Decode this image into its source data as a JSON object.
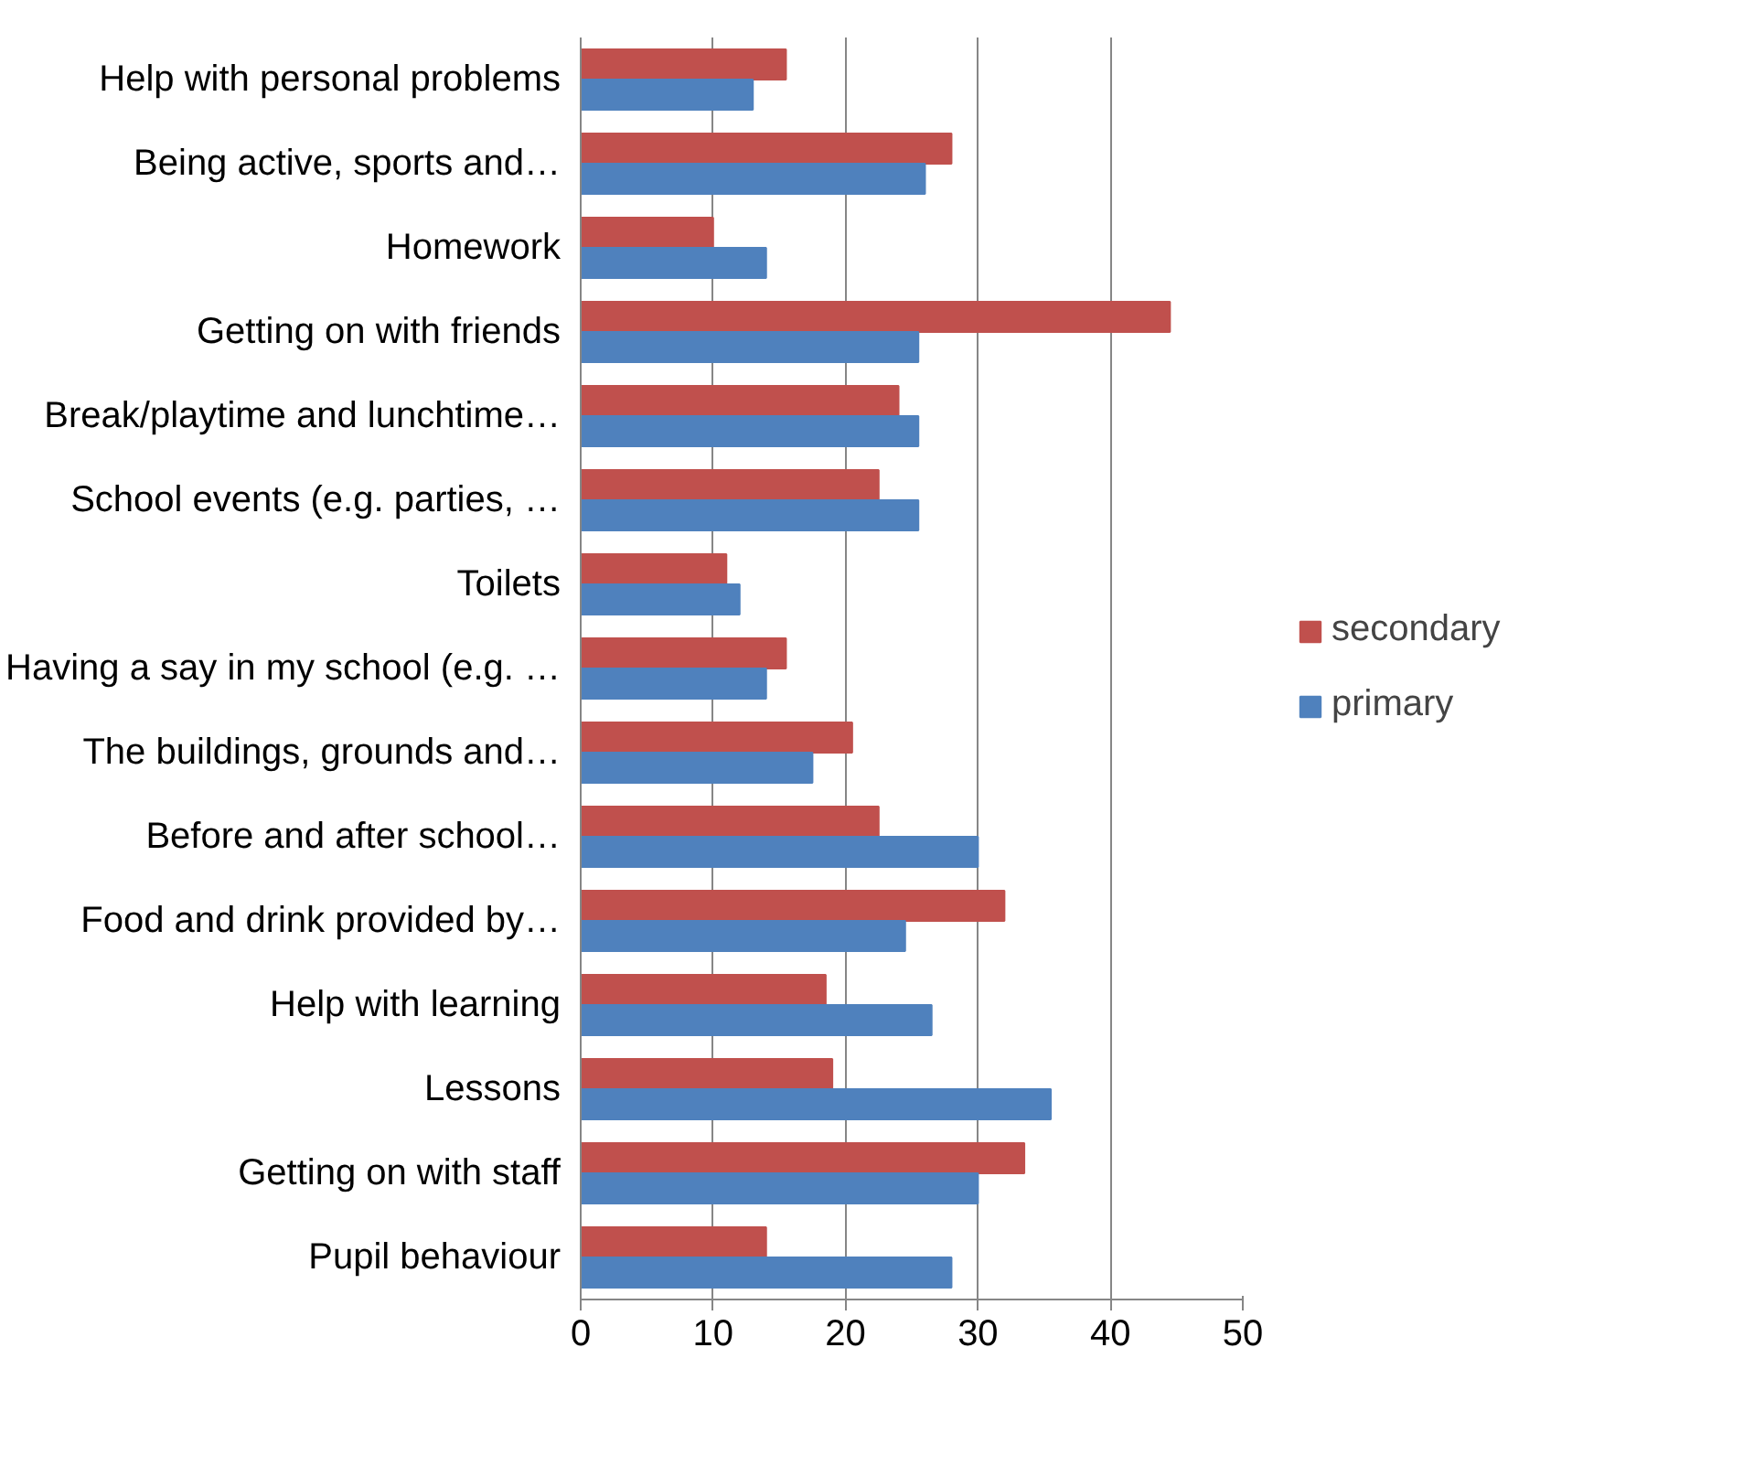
{
  "chart_data": {
    "type": "bar",
    "orientation": "horizontal",
    "categories": [
      "Help with personal problems",
      "Being active, sports and…",
      "Homework",
      "Getting on with friends",
      "Break/playtime and lunchtime…",
      "School events (e.g. parties, …",
      "Toilets",
      "Having a say in my school (e.g. …",
      "The buildings, grounds and…",
      "Before and after school…",
      "Food and drink provided by…",
      "Help with learning",
      "Lessons",
      "Getting on with staff",
      "Pupil behaviour"
    ],
    "series": [
      {
        "name": "secondary",
        "color": "#c0504d",
        "values": [
          15.5,
          28,
          10,
          44.5,
          24,
          22.5,
          11,
          15.5,
          20.5,
          22.5,
          32,
          18.5,
          19,
          33.5,
          14
        ]
      },
      {
        "name": "primary",
        "color": "#4f81bd",
        "values": [
          13,
          26,
          14,
          25.5,
          25.5,
          25.5,
          12,
          14,
          17.5,
          30,
          24.5,
          26.5,
          35.5,
          30,
          28
        ]
      }
    ],
    "xlim": [
      0,
      50
    ],
    "xticks": [
      0,
      10,
      20,
      30,
      40,
      50
    ],
    "grid": "x",
    "legend": "right"
  }
}
